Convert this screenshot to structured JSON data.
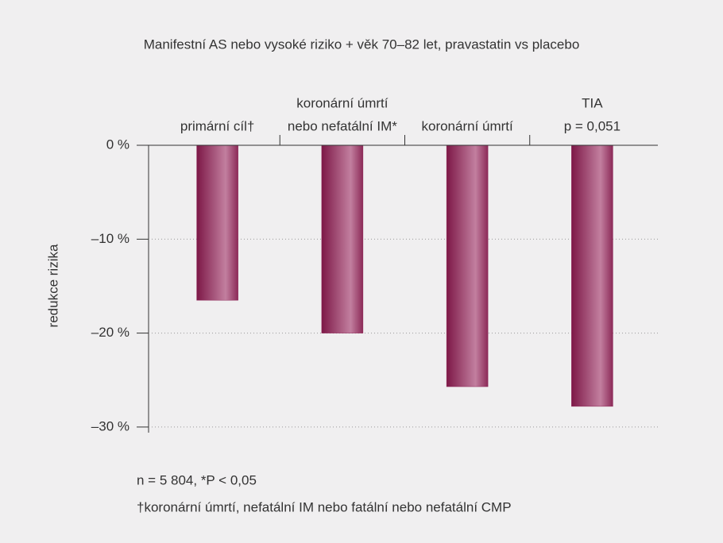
{
  "chart_data": {
    "type": "bar",
    "title": "Manifestní AS nebo vysoké riziko + věk 70–82 let, pravastatin vs placebo",
    "y_label": "redukce rizika",
    "categories": [
      [
        "primární cíl†"
      ],
      [
        "koronární úmrtí",
        "nebo nefatální IM*"
      ],
      [
        "koronární úmrtí"
      ],
      [
        "TIA",
        "p = 0,051"
      ]
    ],
    "values": [
      -16.5,
      -20.0,
      -25.7,
      -27.8
    ],
    "color": "#8c2355",
    "ylim": [
      -30.6,
      0
    ],
    "yticks": [
      {
        "value": 0,
        "label": "0 %"
      },
      {
        "value": -10,
        "label": "–10 %"
      },
      {
        "value": -20,
        "label": "–20 %"
      },
      {
        "value": -30,
        "label": "–30 %"
      }
    ],
    "grid": true,
    "notes": [
      "n = 5 804, *P < 0,05",
      "†koronární úmrtí, nefatální IM nebo fatální nebo nefatální CMP"
    ]
  }
}
